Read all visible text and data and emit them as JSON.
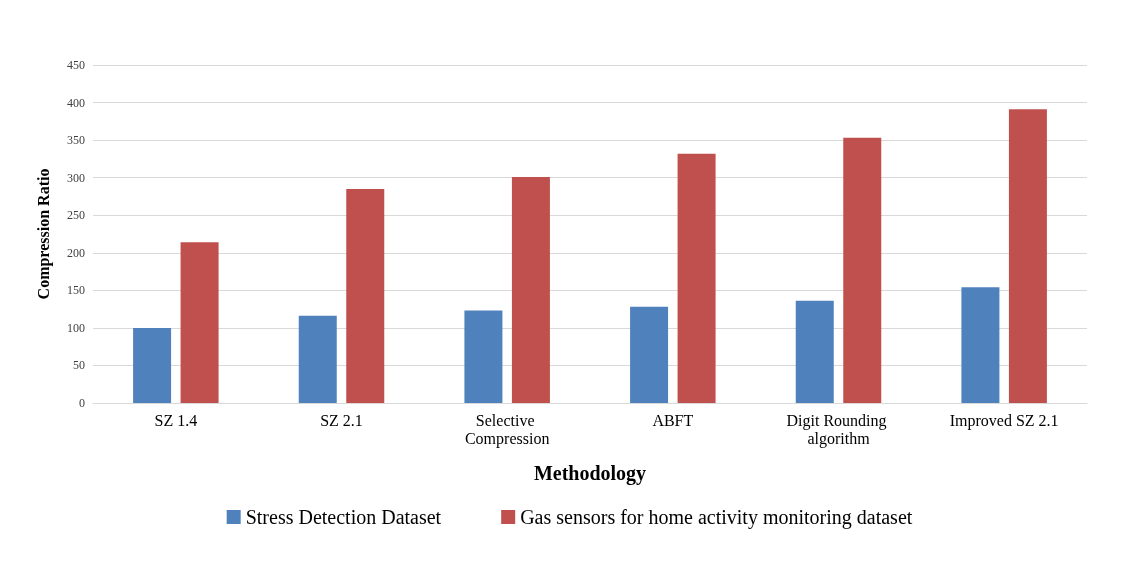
{
  "chart_data": {
    "type": "bar",
    "xlabel": "Methodology",
    "ylabel": "Compression Ratio",
    "categories": [
      "SZ 1.4",
      "SZ 2.1",
      "Selective Compression",
      "ABFT",
      "Digit Rounding algorithm",
      "Improved SZ 2.1"
    ],
    "series": [
      {
        "name": "Stress Detection Dataset",
        "color": "#4f81bd",
        "values": [
          100,
          116,
          123,
          128,
          136,
          154
        ]
      },
      {
        "name": "Gas sensors for home activity monitoring dataset",
        "color": "#c0504d",
        "values": [
          214,
          285,
          301,
          332,
          353,
          391
        ]
      }
    ],
    "ylim": [
      0,
      450
    ],
    "yticks": [
      0,
      50,
      100,
      150,
      200,
      250,
      300,
      350,
      400,
      450
    ],
    "grid": "y",
    "legend": "bottom"
  }
}
